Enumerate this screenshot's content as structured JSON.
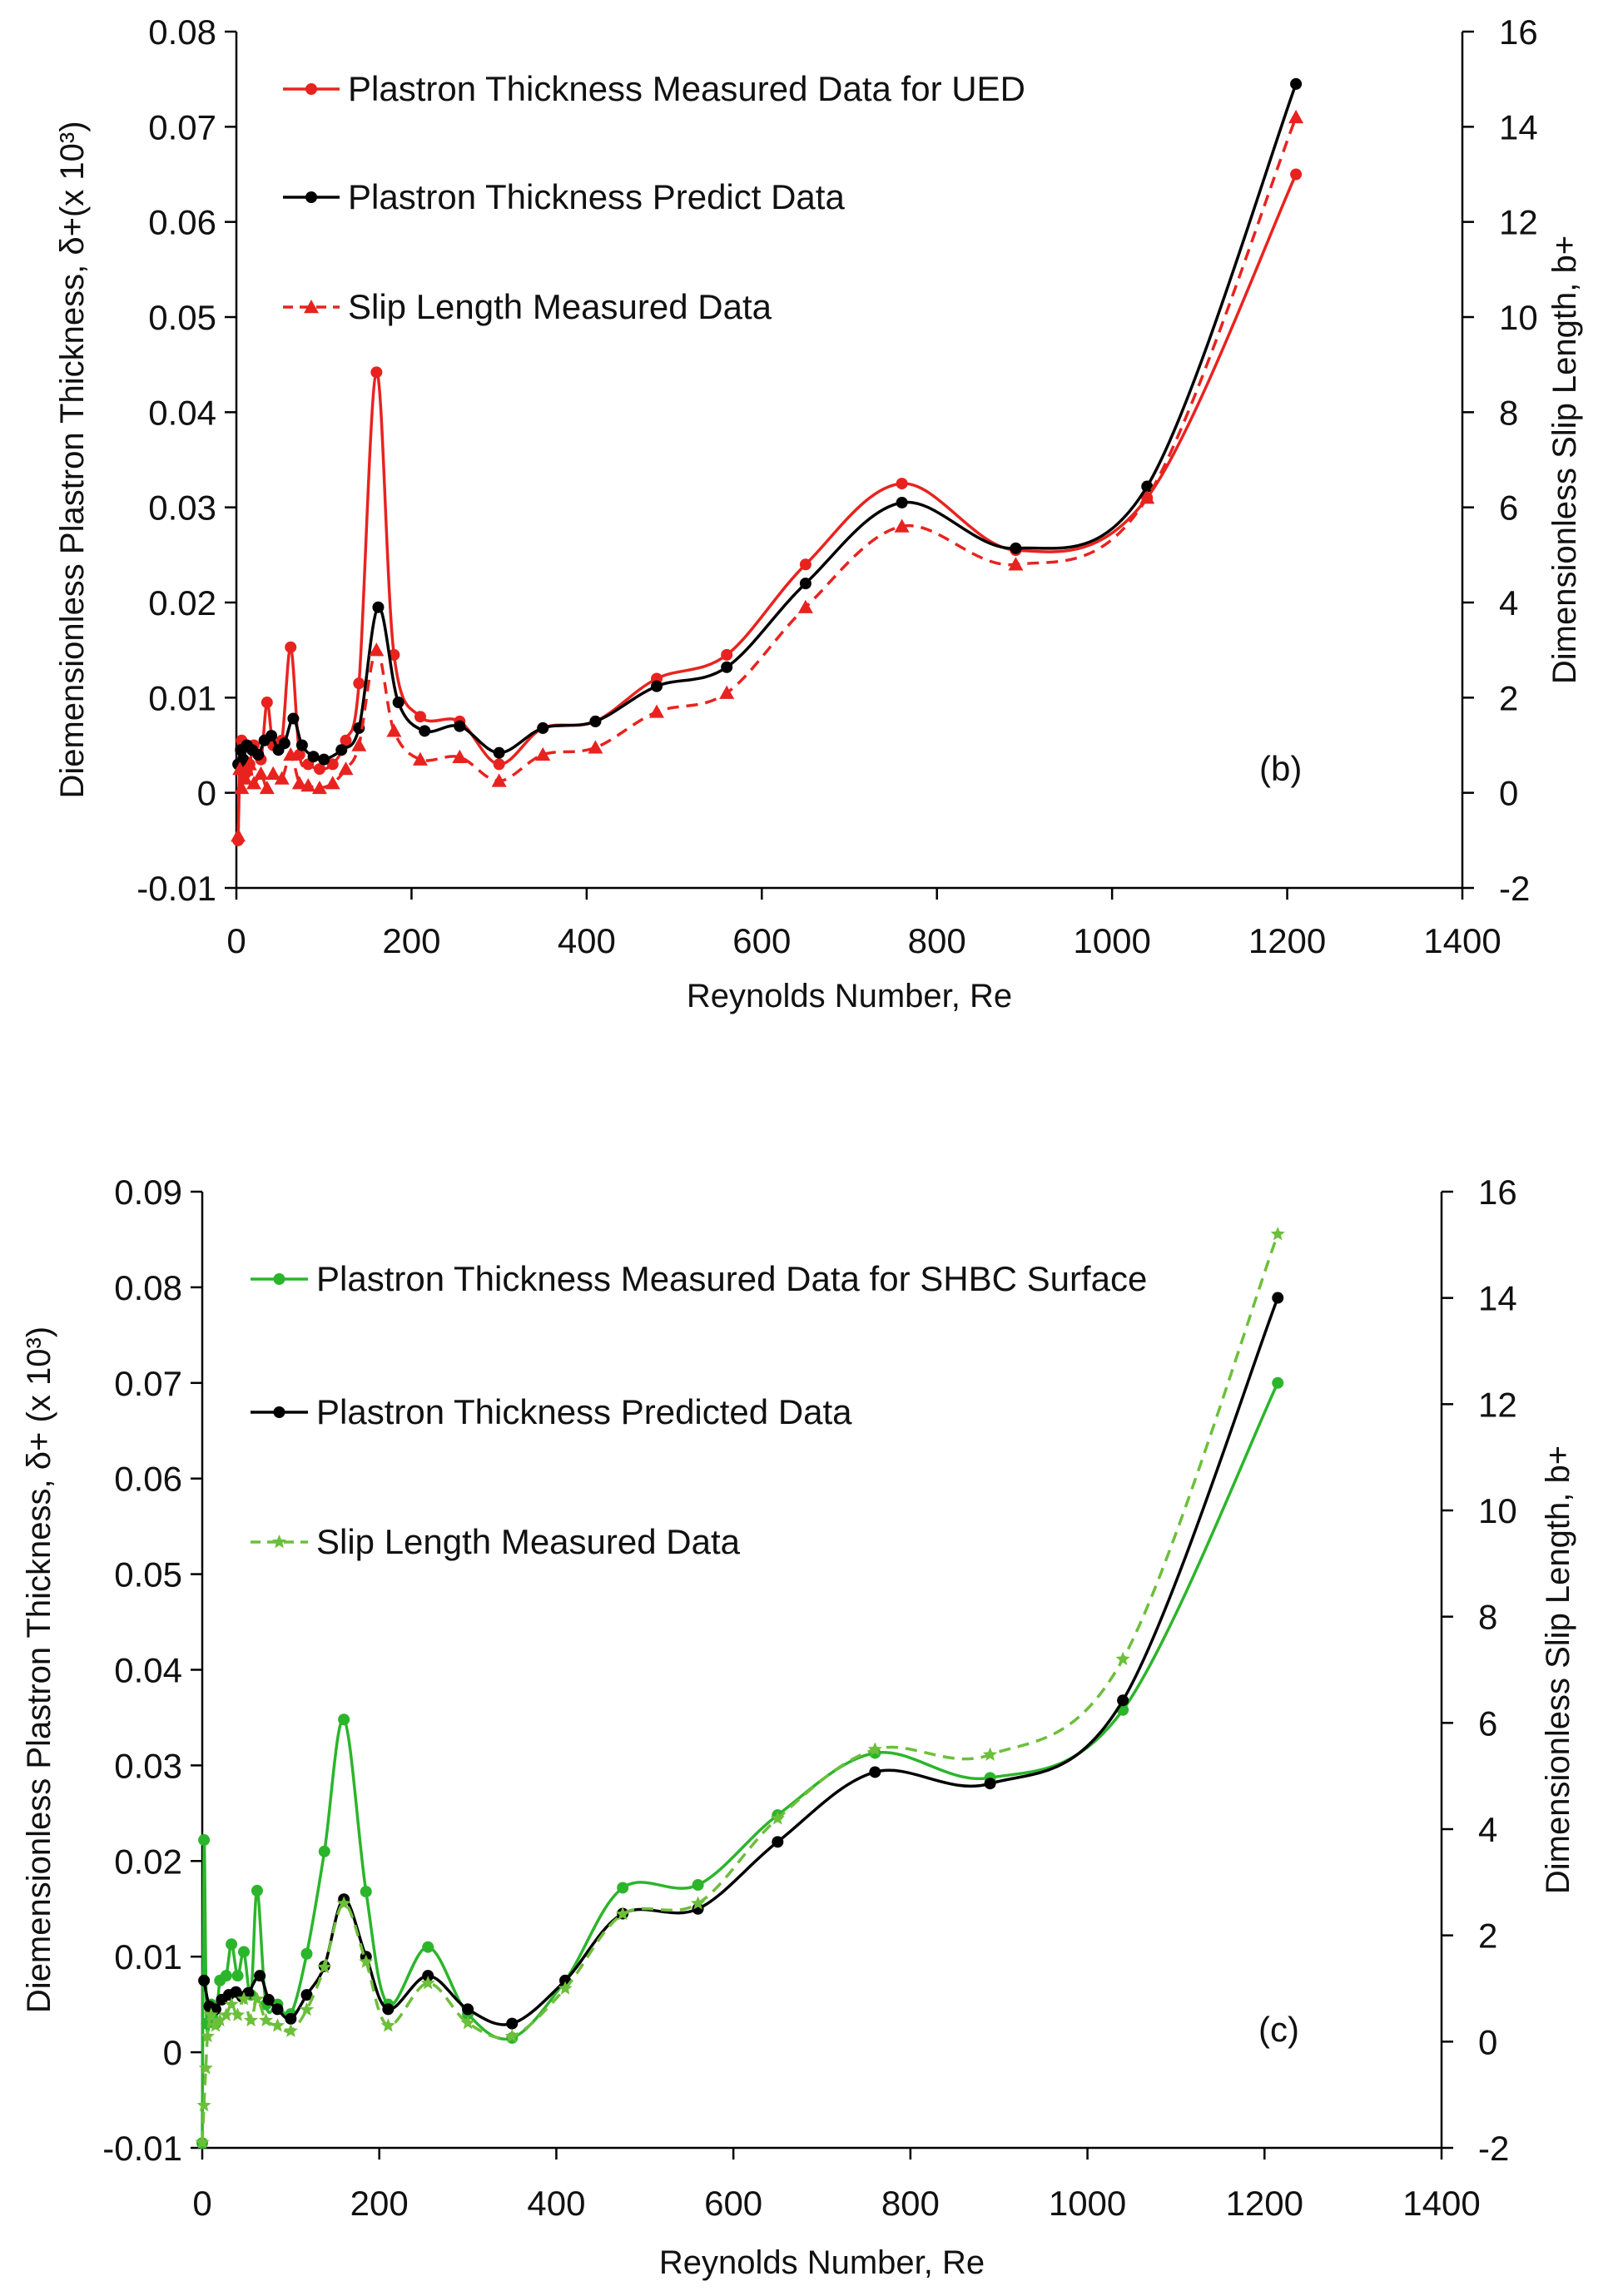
{
  "chart_data": [
    {
      "type": "line",
      "panel_label": "(b)",
      "xlabel": "Reynolds Number, Re",
      "ylabel_left": "Diemensionless Plastron Thickness, δ+(x 10³)",
      "ylabel_right": "Dimensionless Slip Length, b+",
      "xlim": [
        0,
        1400
      ],
      "ylim_left": [
        -0.01,
        0.08
      ],
      "ylim_right": [
        -2,
        16
      ],
      "x_ticks": [
        "0",
        "200",
        "400",
        "600",
        "800",
        "1000",
        "1200",
        "1400"
      ],
      "y_left_ticks": [
        "-0.01",
        "0",
        "0.01",
        "0.02",
        "0.03",
        "0.04",
        "0.05",
        "0.06",
        "0.07",
        "0.08"
      ],
      "y_right_ticks": [
        "-2",
        "0",
        "2",
        "4",
        "6",
        "8",
        "10",
        "12",
        "14",
        "16"
      ],
      "grid": false,
      "legend_position": "top-left",
      "series": [
        {
          "name": "Plastron Thickness Measured Data for UED",
          "axis": "left",
          "color": "#e8231f",
          "dash": "solid",
          "marker": "circle",
          "points": [
            [
              2,
              -0.005
            ],
            [
              4,
              0.003
            ],
            [
              6,
              0.0055
            ],
            [
              10,
              0.002
            ],
            [
              15,
              0.003
            ],
            [
              20,
              0.005
            ],
            [
              28,
              0.0035
            ],
            [
              35,
              0.0095
            ],
            [
              42,
              0.005
            ],
            [
              52,
              0.0055
            ],
            [
              62,
              0.0153
            ],
            [
              72,
              0.004
            ],
            [
              82,
              0.003
            ],
            [
              95,
              0.0025
            ],
            [
              110,
              0.003
            ],
            [
              125,
              0.0055
            ],
            [
              140,
              0.0115
            ],
            [
              160,
              0.0442
            ],
            [
              180,
              0.0145
            ],
            [
              210,
              0.008
            ],
            [
              255,
              0.0075
            ],
            [
              300,
              0.003
            ],
            [
              350,
              0.0068
            ],
            [
              410,
              0.0075
            ],
            [
              480,
              0.012
            ],
            [
              560,
              0.0145
            ],
            [
              650,
              0.024
            ],
            [
              760,
              0.0325
            ],
            [
              890,
              0.0255
            ],
            [
              1040,
              0.031
            ],
            [
              1210,
              0.065
            ]
          ]
        },
        {
          "name": "Plastron Thickness Predict Data",
          "axis": "left",
          "color": "#000000",
          "dash": "solid",
          "marker": "circle",
          "points": [
            [
              2,
              0.003
            ],
            [
              5,
              0.0045
            ],
            [
              8,
              0.0035
            ],
            [
              12,
              0.005
            ],
            [
              18,
              0.0045
            ],
            [
              25,
              0.004
            ],
            [
              32,
              0.0055
            ],
            [
              40,
              0.006
            ],
            [
              48,
              0.0045
            ],
            [
              55,
              0.0052
            ],
            [
              65,
              0.0078
            ],
            [
              75,
              0.005
            ],
            [
              88,
              0.0038
            ],
            [
              100,
              0.0035
            ],
            [
              120,
              0.0045
            ],
            [
              140,
              0.0068
            ],
            [
              162,
              0.0195
            ],
            [
              185,
              0.0095
            ],
            [
              215,
              0.0065
            ],
            [
              255,
              0.007
            ],
            [
              300,
              0.0042
            ],
            [
              350,
              0.0068
            ],
            [
              410,
              0.0075
            ],
            [
              480,
              0.0112
            ],
            [
              560,
              0.0132
            ],
            [
              650,
              0.022
            ],
            [
              760,
              0.0305
            ],
            [
              890,
              0.0257
            ],
            [
              1040,
              0.0322
            ],
            [
              1210,
              0.0745
            ]
          ]
        },
        {
          "name": "Slip Length Measured Data",
          "axis": "right",
          "color": "#e8231f",
          "dash": "dashed",
          "marker": "triangle",
          "points": [
            [
              2,
              -0.9
            ],
            [
              4,
              0.5
            ],
            [
              6,
              0.1
            ],
            [
              10,
              0.3
            ],
            [
              15,
              0.6
            ],
            [
              20,
              0.2
            ],
            [
              28,
              0.4
            ],
            [
              35,
              0.1
            ],
            [
              42,
              0.4
            ],
            [
              52,
              0.3
            ],
            [
              62,
              0.8
            ],
            [
              72,
              0.2
            ],
            [
              82,
              0.15
            ],
            [
              95,
              0.1
            ],
            [
              110,
              0.2
            ],
            [
              125,
              0.5
            ],
            [
              140,
              1.0
            ],
            [
              160,
              3.0
            ],
            [
              180,
              1.3
            ],
            [
              210,
              0.7
            ],
            [
              255,
              0.75
            ],
            [
              300,
              0.25
            ],
            [
              350,
              0.8
            ],
            [
              410,
              0.95
            ],
            [
              480,
              1.7
            ],
            [
              560,
              2.1
            ],
            [
              650,
              3.9
            ],
            [
              760,
              5.6
            ],
            [
              890,
              4.8
            ],
            [
              1040,
              6.2
            ],
            [
              1210,
              14.2
            ]
          ]
        }
      ]
    },
    {
      "type": "line",
      "panel_label": "(c)",
      "xlabel": "Reynolds Number, Re",
      "ylabel_left": "Diemensionless Plastron Thickness, δ+ (x 10³)",
      "ylabel_right": "Dimensionless Slip Length, b+",
      "xlim": [
        0,
        1400
      ],
      "ylim_left": [
        -0.01,
        0.09
      ],
      "ylim_right": [
        -2,
        16
      ],
      "x_ticks": [
        "0",
        "200",
        "400",
        "600",
        "800",
        "1000",
        "1200",
        "1400"
      ],
      "y_left_ticks": [
        "-0.01",
        "0",
        "0.01",
        "0.02",
        "0.03",
        "0.04",
        "0.05",
        "0.06",
        "0.07",
        "0.08",
        "0.09"
      ],
      "y_right_ticks": [
        "-2",
        "0",
        "2",
        "4",
        "6",
        "8",
        "10",
        "12",
        "14",
        "16"
      ],
      "grid": false,
      "legend_position": "top-left",
      "series": [
        {
          "name": "Plastron Thickness Measured Data for SHBC Surface",
          "axis": "left",
          "color": "#2bb52b",
          "dash": "solid",
          "marker": "circle",
          "points": [
            [
              0,
              -0.0095
            ],
            [
              2,
              0.0222
            ],
            [
              5,
              0.003
            ],
            [
              10,
              0.005
            ],
            [
              15,
              0.003
            ],
            [
              20,
              0.0075
            ],
            [
              27,
              0.008
            ],
            [
              33,
              0.0113
            ],
            [
              40,
              0.008
            ],
            [
              47,
              0.0105
            ],
            [
              55,
              0.006
            ],
            [
              62,
              0.0169
            ],
            [
              72,
              0.005
            ],
            [
              85,
              0.005
            ],
            [
              100,
              0.004
            ],
            [
              118,
              0.0103
            ],
            [
              138,
              0.021
            ],
            [
              160,
              0.0348
            ],
            [
              185,
              0.0168
            ],
            [
              210,
              0.005
            ],
            [
              255,
              0.011
            ],
            [
              300,
              0.004
            ],
            [
              350,
              0.0015
            ],
            [
              410,
              0.0075
            ],
            [
              475,
              0.0172
            ],
            [
              560,
              0.0175
            ],
            [
              650,
              0.0248
            ],
            [
              760,
              0.0313
            ],
            [
              890,
              0.0287
            ],
            [
              1040,
              0.0358
            ],
            [
              1215,
              0.07
            ]
          ]
        },
        {
          "name": "Plastron Thickness Predicted Data",
          "axis": "left",
          "color": "#000000",
          "dash": "solid",
          "marker": "circle",
          "points": [
            [
              2,
              0.0075
            ],
            [
              8,
              0.0048
            ],
            [
              15,
              0.0045
            ],
            [
              22,
              0.0055
            ],
            [
              30,
              0.006
            ],
            [
              38,
              0.0063
            ],
            [
              45,
              0.0058
            ],
            [
              52,
              0.0062
            ],
            [
              65,
              0.008
            ],
            [
              75,
              0.0055
            ],
            [
              85,
              0.0045
            ],
            [
              100,
              0.0035
            ],
            [
              118,
              0.006
            ],
            [
              138,
              0.009
            ],
            [
              160,
              0.016
            ],
            [
              185,
              0.01
            ],
            [
              210,
              0.0045
            ],
            [
              255,
              0.008
            ],
            [
              300,
              0.0045
            ],
            [
              350,
              0.003
            ],
            [
              410,
              0.0075
            ],
            [
              475,
              0.0145
            ],
            [
              560,
              0.015
            ],
            [
              650,
              0.022
            ],
            [
              760,
              0.0293
            ],
            [
              890,
              0.0281
            ],
            [
              1040,
              0.0368
            ],
            [
              1215,
              0.0789
            ]
          ]
        },
        {
          "name": "Slip Length Measured Data",
          "axis": "right",
          "color": "#6cbf3a",
          "dash": "dashed",
          "marker": "star",
          "points": [
            [
              0,
              -1.9
            ],
            [
              2,
              -1.2
            ],
            [
              4,
              -0.5
            ],
            [
              6,
              0.1
            ],
            [
              10,
              0.5
            ],
            [
              15,
              0.3
            ],
            [
              20,
              0.4
            ],
            [
              27,
              0.5
            ],
            [
              33,
              0.7
            ],
            [
              40,
              0.5
            ],
            [
              47,
              0.8
            ],
            [
              55,
              0.4
            ],
            [
              62,
              0.8
            ],
            [
              72,
              0.4
            ],
            [
              85,
              0.3
            ],
            [
              100,
              0.2
            ],
            [
              118,
              0.6
            ],
            [
              138,
              1.4
            ],
            [
              160,
              2.6
            ],
            [
              185,
              1.5
            ],
            [
              210,
              0.3
            ],
            [
              255,
              1.1
            ],
            [
              300,
              0.35
            ],
            [
              350,
              0.1
            ],
            [
              410,
              1.0
            ],
            [
              475,
              2.4
            ],
            [
              560,
              2.6
            ],
            [
              650,
              4.2
            ],
            [
              760,
              5.5
            ],
            [
              890,
              5.4
            ],
            [
              1040,
              7.2
            ],
            [
              1215,
              15.2
            ]
          ]
        }
      ]
    }
  ]
}
